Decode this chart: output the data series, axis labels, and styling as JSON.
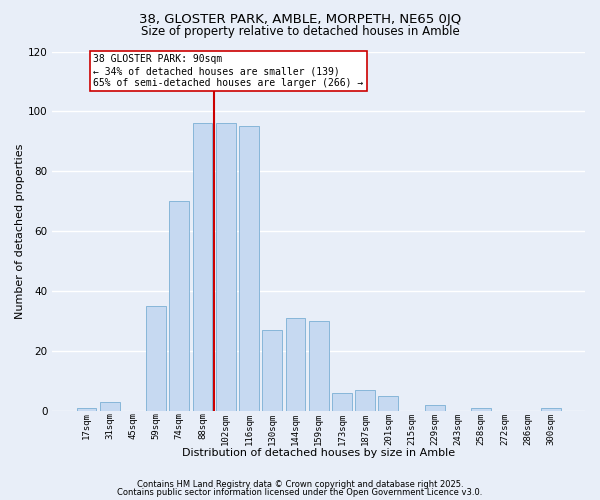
{
  "title": "38, GLOSTER PARK, AMBLE, MORPETH, NE65 0JQ",
  "subtitle": "Size of property relative to detached houses in Amble",
  "xlabel": "Distribution of detached houses by size in Amble",
  "ylabel": "Number of detached properties",
  "bar_labels": [
    "17sqm",
    "31sqm",
    "45sqm",
    "59sqm",
    "74sqm",
    "88sqm",
    "102sqm",
    "116sqm",
    "130sqm",
    "144sqm",
    "159sqm",
    "173sqm",
    "187sqm",
    "201sqm",
    "215sqm",
    "229sqm",
    "243sqm",
    "258sqm",
    "272sqm",
    "286sqm",
    "300sqm"
  ],
  "bar_values": [
    1,
    3,
    0,
    35,
    70,
    96,
    96,
    95,
    27,
    31,
    30,
    6,
    7,
    5,
    0,
    2,
    0,
    1,
    0,
    0,
    1
  ],
  "bar_color": "#c6d9f1",
  "bar_edge_color": "#7bafd4",
  "ylim": [
    0,
    120
  ],
  "yticks": [
    0,
    20,
    40,
    60,
    80,
    100,
    120
  ],
  "vline_x": 5.5,
  "vline_color": "#cc0000",
  "annotation_text": "38 GLOSTER PARK: 90sqm\n← 34% of detached houses are smaller (139)\n65% of semi-detached houses are larger (266) →",
  "annotation_box_color": "#ffffff",
  "annotation_box_edge": "#cc0000",
  "footnote1": "Contains HM Land Registry data © Crown copyright and database right 2025.",
  "footnote2": "Contains public sector information licensed under the Open Government Licence v3.0.",
  "background_color": "#e8eef8",
  "plot_bg_color": "#e8eef8",
  "grid_color": "#ffffff",
  "title_fontsize": 9.5,
  "subtitle_fontsize": 8.5,
  "xlabel_fontsize": 8,
  "ylabel_fontsize": 8,
  "annotation_fontsize": 7,
  "footnote_fontsize": 6
}
